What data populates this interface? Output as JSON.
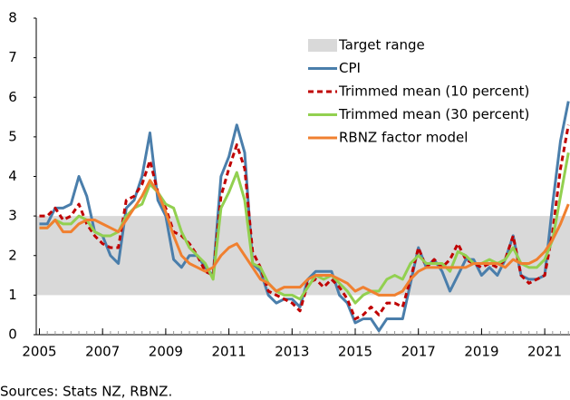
{
  "chart_data": {
    "type": "line",
    "source": "Sources: Stats NZ, RBNZ.",
    "x": [
      2005,
      2005.25,
      2005.5,
      2005.75,
      2006,
      2006.25,
      2006.5,
      2006.75,
      2007,
      2007.25,
      2007.5,
      2007.75,
      2008,
      2008.25,
      2008.5,
      2008.75,
      2009,
      2009.25,
      2009.5,
      2009.75,
      2010,
      2010.25,
      2010.5,
      2010.75,
      2011,
      2011.25,
      2011.5,
      2011.75,
      2012,
      2012.25,
      2012.5,
      2012.75,
      2013,
      2013.25,
      2013.5,
      2013.75,
      2014,
      2014.25,
      2014.5,
      2014.75,
      2015,
      2015.25,
      2015.5,
      2015.75,
      2016,
      2016.25,
      2016.5,
      2016.75,
      2017,
      2017.25,
      2017.5,
      2017.75,
      2018,
      2018.25,
      2018.5,
      2018.75,
      2019,
      2019.25,
      2019.5,
      2019.75,
      2020,
      2020.25,
      2020.5,
      2020.75,
      2021,
      2021.25,
      2021.5,
      2021.75
    ],
    "bands": [
      {
        "name": "Target range",
        "color": "#d9d9d9",
        "range": [
          1,
          3
        ]
      }
    ],
    "series": [
      {
        "name": "CPI",
        "color": "#4a7eab",
        "style": "solid",
        "values": [
          2.8,
          2.8,
          3.2,
          3.2,
          3.3,
          4.0,
          3.5,
          2.6,
          2.5,
          2.0,
          1.8,
          3.2,
          3.4,
          4.0,
          5.1,
          3.4,
          3.0,
          1.9,
          1.7,
          2.0,
          2.0,
          1.7,
          1.5,
          4.0,
          4.5,
          5.3,
          4.6,
          1.8,
          1.6,
          1.0,
          0.8,
          0.9,
          0.9,
          0.7,
          1.4,
          1.6,
          1.6,
          1.6,
          1.0,
          0.8,
          0.3,
          0.4,
          0.4,
          0.1,
          0.4,
          0.4,
          0.4,
          1.3,
          2.2,
          1.7,
          1.9,
          1.6,
          1.1,
          1.5,
          1.9,
          1.9,
          1.5,
          1.7,
          1.5,
          1.9,
          2.5,
          1.5,
          1.4,
          1.4,
          1.5,
          3.3,
          4.9,
          5.9
        ]
      },
      {
        "name": "Trimmed mean (10 percent)",
        "color": "#c00000",
        "style": "dashed",
        "values": [
          3.0,
          3.0,
          3.2,
          2.9,
          3.0,
          3.3,
          2.8,
          2.5,
          2.3,
          2.2,
          2.2,
          3.4,
          3.5,
          3.8,
          4.4,
          3.6,
          3.2,
          2.6,
          2.5,
          2.3,
          2.0,
          1.6,
          1.5,
          3.5,
          4.2,
          4.8,
          4.2,
          2.1,
          1.7,
          1.1,
          1.0,
          0.9,
          0.8,
          0.6,
          1.3,
          1.4,
          1.2,
          1.4,
          1.2,
          0.9,
          0.4,
          0.5,
          0.7,
          0.5,
          0.8,
          0.8,
          0.7,
          1.4,
          2.2,
          1.7,
          1.9,
          1.7,
          1.9,
          2.3,
          1.9,
          1.8,
          1.7,
          1.8,
          1.7,
          1.9,
          2.5,
          1.5,
          1.3,
          1.4,
          1.5,
          2.6,
          4.2,
          5.3
        ]
      },
      {
        "name": "Trimmed mean (30 percent)",
        "color": "#92d050",
        "style": "solid",
        "values": [
          2.7,
          2.7,
          2.9,
          2.8,
          2.8,
          3.0,
          2.9,
          2.6,
          2.5,
          2.5,
          2.6,
          3.0,
          3.2,
          3.3,
          3.8,
          3.6,
          3.3,
          3.2,
          2.6,
          2.2,
          2.0,
          1.8,
          1.4,
          3.2,
          3.6,
          4.1,
          3.4,
          1.8,
          1.7,
          1.3,
          1.1,
          1.0,
          1.0,
          0.9,
          1.2,
          1.5,
          1.4,
          1.5,
          1.3,
          1.1,
          0.8,
          1.0,
          1.1,
          1.1,
          1.4,
          1.5,
          1.4,
          1.8,
          2.0,
          1.8,
          1.8,
          1.8,
          1.6,
          2.1,
          2.0,
          1.8,
          1.8,
          1.9,
          1.8,
          1.9,
          2.2,
          1.8,
          1.7,
          1.7,
          1.9,
          2.4,
          3.5,
          4.6
        ]
      },
      {
        "name": "RBNZ factor model",
        "color": "#f08030",
        "style": "solid",
        "values": [
          2.7,
          2.7,
          2.9,
          2.6,
          2.6,
          2.8,
          2.9,
          2.9,
          2.8,
          2.7,
          2.6,
          2.9,
          3.2,
          3.5,
          3.9,
          3.6,
          3.1,
          2.5,
          2.0,
          1.8,
          1.7,
          1.6,
          1.7,
          2.0,
          2.2,
          2.3,
          2.0,
          1.7,
          1.4,
          1.3,
          1.1,
          1.2,
          1.2,
          1.2,
          1.4,
          1.5,
          1.5,
          1.5,
          1.4,
          1.3,
          1.1,
          1.2,
          1.1,
          1.0,
          1.0,
          1.0,
          1.1,
          1.4,
          1.6,
          1.7,
          1.7,
          1.7,
          1.7,
          1.7,
          1.7,
          1.8,
          1.8,
          1.8,
          1.8,
          1.7,
          1.9,
          1.8,
          1.8,
          1.9,
          2.1,
          2.4,
          2.8,
          3.3
        ]
      }
    ],
    "xlim": [
      2004.9,
      2021.8
    ],
    "xticks": [
      2005,
      2007,
      2009,
      2011,
      2013,
      2015,
      2017,
      2019,
      2021
    ],
    "ylim": [
      0,
      8
    ],
    "yticks": [
      0,
      1,
      2,
      3,
      4,
      5,
      6,
      7,
      8
    ],
    "legend": "upper right"
  }
}
